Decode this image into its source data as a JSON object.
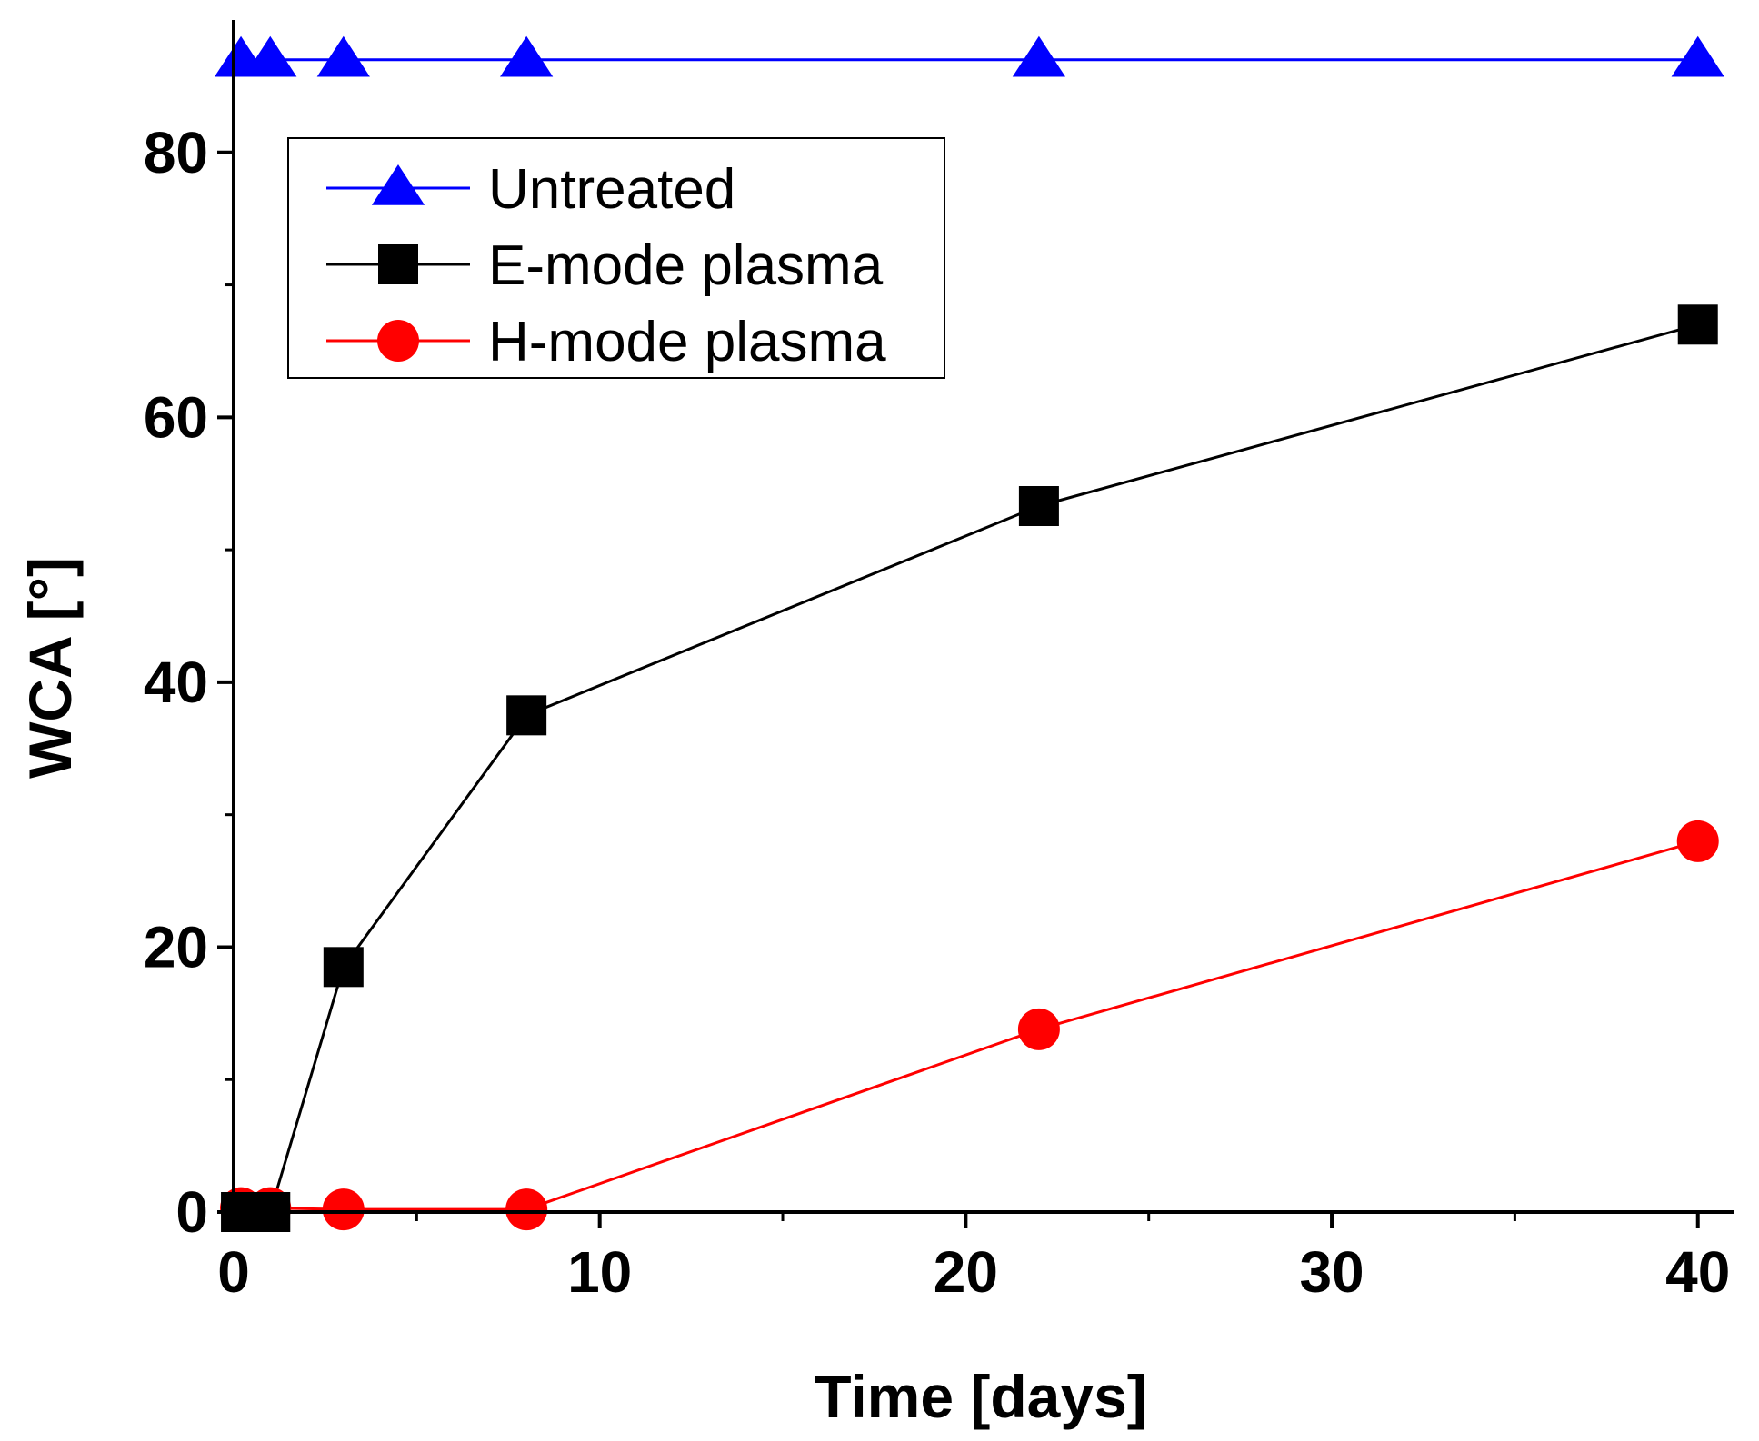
{
  "chart_data": {
    "type": "line",
    "title": "",
    "xlabel": "Time [days]",
    "ylabel": "WCA [°]",
    "xlim": [
      0,
      41
    ],
    "ylim": [
      0,
      90
    ],
    "x_ticks": [
      0,
      10,
      20,
      30,
      40
    ],
    "x_minor_ticks": [
      5,
      15,
      25,
      35
    ],
    "y_ticks": [
      0,
      20,
      40,
      60,
      80
    ],
    "y_minor_ticks": [
      10,
      30,
      50,
      70
    ],
    "grid": false,
    "legend_position": "top-left",
    "series": [
      {
        "name": "Untreated",
        "color": "#0000ff",
        "marker": "triangle",
        "x": [
          0.2,
          1,
          3,
          8,
          22,
          40
        ],
        "y": [
          87,
          87,
          87,
          87,
          87,
          87
        ]
      },
      {
        "name": "E-mode plasma",
        "color": "#000000",
        "marker": "square",
        "x": [
          0.2,
          1,
          3,
          8,
          22,
          40
        ],
        "y": [
          0,
          0,
          18.5,
          37.5,
          53.3,
          67
        ]
      },
      {
        "name": "H-mode plasma",
        "color": "#ff0000",
        "marker": "circle",
        "x": [
          0.2,
          1,
          3,
          8,
          22,
          40
        ],
        "y": [
          0.3,
          0.3,
          0.2,
          0.2,
          13.8,
          28
        ]
      }
    ]
  }
}
